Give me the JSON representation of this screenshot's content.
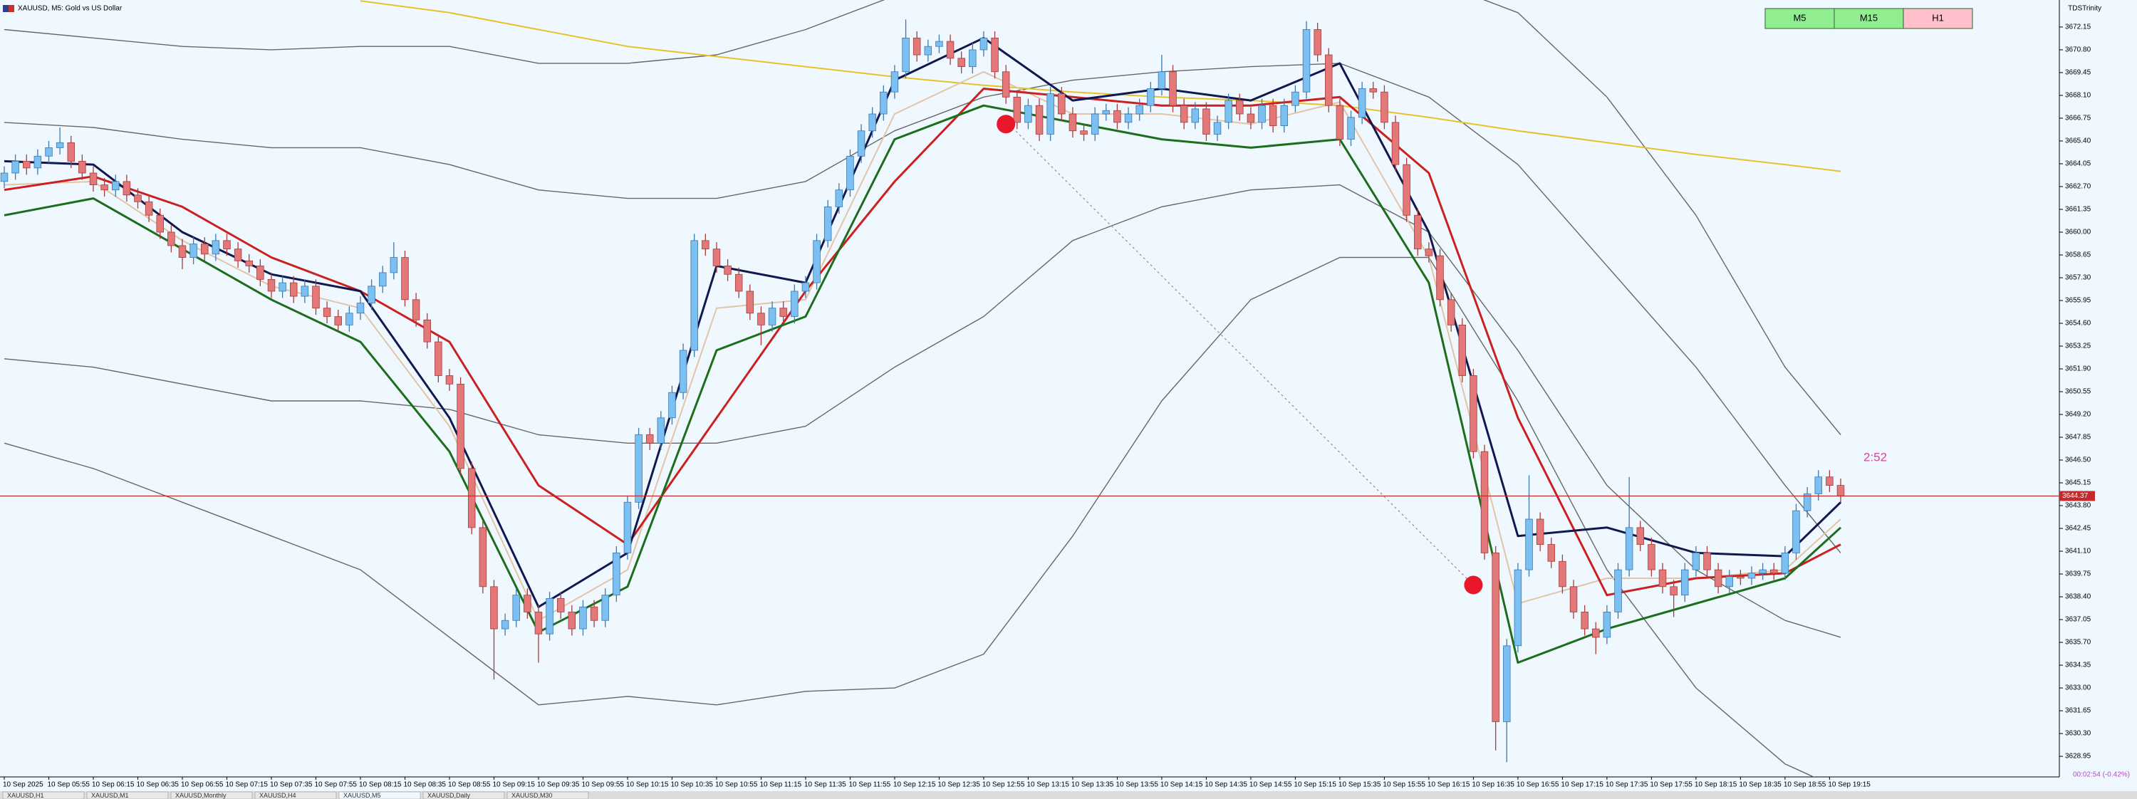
{
  "chart_data": {
    "type": "candlestick",
    "title": "XAUUSD, M5: Gold vs US Dollar",
    "categories": [
      "10 Sep 2025",
      null,
      null,
      null,
      "10 Sep 05:55",
      null,
      null,
      null,
      "10 Sep 06:15",
      null,
      null,
      null,
      "10 Sep 06:35",
      null,
      null,
      null,
      "10 Sep 06:55",
      null,
      null,
      null,
      "10 Sep 07:15",
      null,
      null,
      null,
      "10 Sep 07:35",
      null,
      null,
      null,
      "10 Sep 07:55",
      null,
      null,
      null,
      "10 Sep 08:15",
      null,
      null,
      null,
      "10 Sep 08:35",
      null,
      null,
      null,
      "10 Sep 08:55",
      null,
      null,
      null,
      "10 Sep 09:15",
      null,
      null,
      null,
      "10 Sep 09:35",
      null,
      null,
      null,
      "10 Sep 09:55",
      null,
      null,
      null,
      "10 Sep 10:15",
      null,
      null,
      null,
      "10 Sep 10:35",
      null,
      null,
      null,
      "10 Sep 10:55",
      null,
      null,
      null,
      "10 Sep 11:15",
      null,
      null,
      null,
      "10 Sep 11:35",
      null,
      null,
      null,
      "10 Sep 11:55",
      null,
      null,
      null,
      "10 Sep 12:15",
      null,
      null,
      null,
      "10 Sep 12:35",
      null,
      null,
      null,
      "10 Sep 12:55",
      null,
      null,
      null,
      "10 Sep 13:15",
      null,
      null,
      null,
      "10 Sep 13:35",
      null,
      null,
      null,
      "10 Sep 13:55",
      null,
      null,
      null,
      "10 Sep 14:15",
      null,
      null,
      null,
      "10 Sep 14:35",
      null,
      null,
      null,
      "10 Sep 14:55",
      null,
      null,
      null,
      "10 Sep 15:15",
      null,
      null,
      null,
      "10 Sep 15:35",
      null,
      null,
      null,
      "10 Sep 15:55",
      null,
      null,
      null,
      "10 Sep 16:15",
      null,
      null,
      null,
      "10 Sep 16:35",
      null,
      null,
      null,
      "10 Sep 16:55",
      null,
      null,
      null,
      "10 Sep 17:15",
      null,
      null,
      null,
      "10 Sep 17:35",
      null,
      null,
      null,
      "10 Sep 17:55",
      null,
      null,
      null,
      "10 Sep 18:15",
      null,
      null,
      null,
      "10 Sep 18:35",
      null,
      null,
      null,
      "10 Sep 18:55",
      null,
      null,
      null,
      "10 Sep 19:15",
      null
    ],
    "open": [
      3663.0,
      3663.5,
      3664.2,
      3663.8,
      3664.5,
      3665.0,
      3665.3,
      3664.2,
      3663.5,
      3662.8,
      3662.5,
      3663.0,
      3662.2,
      3661.8,
      3661.0,
      3660.0,
      3659.2,
      3658.5,
      3659.3,
      3658.7,
      3659.5,
      3659.0,
      3658.3,
      3658.0,
      3657.2,
      3656.5,
      3657.0,
      3656.2,
      3656.8,
      3655.5,
      3655.0,
      3654.5,
      3655.2,
      3655.8,
      3656.8,
      3657.6,
      3658.5,
      3656.0,
      3654.8,
      3653.5,
      3651.5,
      3651.0,
      3646.0,
      3642.5,
      3639.0,
      3636.5,
      3637.0,
      3638.5,
      3637.5,
      3636.2,
      3638.3,
      3637.5,
      3636.5,
      3637.8,
      3637.0,
      3638.5,
      3641.0,
      3644.0,
      3648.0,
      3647.5,
      3649.0,
      3650.5,
      3653.0,
      3659.5,
      3659.0,
      3658.0,
      3657.5,
      3656.5,
      3655.2,
      3654.5,
      3655.5,
      3655.0,
      3656.5,
      3657.0,
      3659.5,
      3661.5,
      3662.5,
      3664.5,
      3666.0,
      3667.0,
      3668.3,
      3669.5,
      3671.5,
      3670.5,
      3671.0,
      3671.3,
      3670.3,
      3669.8,
      3670.8,
      3671.5,
      3669.5,
      3668.0,
      3666.5,
      3667.5,
      3665.8,
      3668.2,
      3667.0,
      3666.0,
      3665.8,
      3667.0,
      3667.2,
      3666.5,
      3667.0,
      3667.5,
      3668.5,
      3669.5,
      3667.5,
      3666.5,
      3667.3,
      3665.8,
      3666.5,
      3667.8,
      3667.0,
      3666.5,
      3667.5,
      3666.3,
      3667.5,
      3668.3,
      3672.0,
      3670.5,
      3667.5,
      3665.5,
      3666.8,
      3668.5,
      3668.3,
      3666.5,
      3664.0,
      3661.0,
      3659.0,
      3658.6,
      3656.0,
      3654.5,
      3651.5,
      3647.0,
      3641.0,
      3631.0,
      3635.5,
      3640.0,
      3643.0,
      3641.5,
      3640.5,
      3639.0,
      3637.5,
      3636.5,
      3636.0,
      3637.5,
      3640.0,
      3642.5,
      3641.5,
      3640.0,
      3639.0,
      3638.5,
      3640.0,
      3641.0,
      3640.0,
      3639.0,
      3639.6,
      3639.5,
      3639.8,
      3640.0,
      3639.8,
      3641.0,
      3643.5,
      3644.5,
      3645.5,
      3645.0
    ],
    "high": [
      3663.9,
      3664.6,
      3664.6,
      3664.9,
      3665.4,
      3666.2,
      3665.7,
      3664.6,
      3663.9,
      3663.2,
      3663.4,
      3663.4,
      3662.6,
      3662.2,
      3661.4,
      3660.4,
      3659.6,
      3659.7,
      3659.7,
      3659.9,
      3659.9,
      3659.4,
      3658.7,
      3658.4,
      3657.6,
      3657.4,
      3657.4,
      3657.2,
      3657.2,
      3655.9,
      3655.4,
      3655.6,
      3656.2,
      3657.2,
      3658.0,
      3659.4,
      3658.9,
      3656.4,
      3655.2,
      3653.9,
      3651.9,
      3651.4,
      3646.4,
      3642.9,
      3639.4,
      3637.4,
      3638.9,
      3638.9,
      3637.9,
      3638.7,
      3638.7,
      3637.9,
      3638.2,
      3638.2,
      3638.9,
      3641.4,
      3644.4,
      3648.4,
      3648.4,
      3649.4,
      3650.9,
      3653.4,
      3659.9,
      3659.9,
      3659.4,
      3658.4,
      3657.9,
      3656.9,
      3655.6,
      3655.9,
      3655.9,
      3656.9,
      3657.4,
      3659.9,
      3661.9,
      3662.9,
      3664.9,
      3666.4,
      3667.4,
      3668.7,
      3669.9,
      3672.6,
      3671.9,
      3671.4,
      3671.7,
      3671.7,
      3670.7,
      3671.2,
      3671.9,
      3671.9,
      3669.9,
      3668.4,
      3667.9,
      3667.9,
      3668.6,
      3668.6,
      3667.4,
      3666.4,
      3667.4,
      3667.6,
      3667.6,
      3667.4,
      3667.9,
      3668.9,
      3670.5,
      3669.9,
      3667.9,
      3667.7,
      3667.7,
      3666.9,
      3668.2,
      3668.2,
      3667.4,
      3667.9,
      3667.9,
      3667.9,
      3668.7,
      3672.5,
      3672.4,
      3670.9,
      3667.9,
      3667.2,
      3668.9,
      3668.9,
      3668.7,
      3666.9,
      3664.4,
      3661.4,
      3659.4,
      3659.0,
      3656.4,
      3654.9,
      3651.9,
      3647.4,
      3641.4,
      3635.9,
      3640.4,
      3645.6,
      3643.4,
      3641.9,
      3640.9,
      3639.4,
      3637.9,
      3636.9,
      3637.9,
      3640.4,
      3645.5,
      3642.9,
      3641.9,
      3640.4,
      3639.4,
      3640.4,
      3641.4,
      3641.4,
      3640.4,
      3640.0,
      3640.0,
      3640.2,
      3640.4,
      3640.4,
      3641.4,
      3643.9,
      3644.9,
      3645.9,
      3645.9,
      3645.4
    ],
    "low": [
      3662.6,
      3663.1,
      3663.4,
      3663.4,
      3664.1,
      3664.6,
      3663.8,
      3663.1,
      3662.4,
      3662.1,
      3662.1,
      3661.8,
      3661.4,
      3660.6,
      3659.6,
      3658.8,
      3657.8,
      3658.1,
      3658.3,
      3658.3,
      3658.6,
      3657.9,
      3657.6,
      3656.8,
      3656.1,
      3656.1,
      3655.8,
      3655.8,
      3655.1,
      3654.6,
      3654.1,
      3654.1,
      3654.8,
      3655.4,
      3656.4,
      3657.2,
      3655.6,
      3654.4,
      3653.1,
      3651.1,
      3650.6,
      3645.6,
      3642.1,
      3638.6,
      3633.5,
      3636.1,
      3636.6,
      3637.1,
      3634.5,
      3635.8,
      3637.1,
      3636.1,
      3636.1,
      3636.6,
      3636.6,
      3638.1,
      3640.6,
      3643.6,
      3647.1,
      3647.1,
      3648.6,
      3650.1,
      3652.6,
      3658.6,
      3657.6,
      3657.1,
      3656.1,
      3654.8,
      3653.3,
      3654.1,
      3654.6,
      3654.6,
      3656.1,
      3656.6,
      3659.1,
      3661.1,
      3662.1,
      3664.1,
      3665.6,
      3666.6,
      3667.9,
      3669.1,
      3670.1,
      3670.1,
      3670.6,
      3669.9,
      3669.4,
      3669.4,
      3670.4,
      3669.1,
      3667.6,
      3666.1,
      3666.1,
      3665.4,
      3665.4,
      3666.6,
      3665.6,
      3665.4,
      3665.4,
      3666.6,
      3666.1,
      3666.1,
      3666.6,
      3667.1,
      3668.1,
      3667.1,
      3666.1,
      3666.1,
      3665.4,
      3665.4,
      3666.1,
      3666.6,
      3666.1,
      3666.1,
      3665.9,
      3665.9,
      3667.1,
      3667.9,
      3670.1,
      3667.1,
      3665.1,
      3665.1,
      3666.4,
      3667.9,
      3666.1,
      3663.6,
      3660.6,
      3658.6,
      3658.2,
      3655.6,
      3654.1,
      3651.1,
      3646.6,
      3640.6,
      3629.3,
      3628.6,
      3635.1,
      3639.6,
      3641.1,
      3640.1,
      3638.6,
      3637.1,
      3636.1,
      3635.0,
      3635.6,
      3637.1,
      3639.6,
      3641.1,
      3639.6,
      3638.6,
      3637.2,
      3638.1,
      3639.6,
      3639.6,
      3638.6,
      3638.6,
      3639.1,
      3639.1,
      3639.4,
      3639.4,
      3639.4,
      3640.6,
      3643.1,
      3644.1,
      3644.6,
      3643.97
    ],
    "close": [
      3663.5,
      3664.2,
      3663.8,
      3664.5,
      3665.0,
      3665.3,
      3664.2,
      3663.5,
      3662.8,
      3662.5,
      3663.0,
      3662.2,
      3661.8,
      3661.0,
      3660.0,
      3659.2,
      3658.5,
      3659.3,
      3658.7,
      3659.5,
      3659.0,
      3658.3,
      3658.0,
      3657.2,
      3656.5,
      3657.0,
      3656.2,
      3656.8,
      3655.5,
      3655.0,
      3654.5,
      3655.2,
      3655.8,
      3656.8,
      3657.6,
      3658.5,
      3656.0,
      3654.8,
      3653.5,
      3651.5,
      3651.0,
      3646.0,
      3642.5,
      3639.0,
      3636.5,
      3637.0,
      3638.5,
      3637.5,
      3636.2,
      3638.3,
      3637.5,
      3636.5,
      3637.8,
      3637.0,
      3638.5,
      3641.0,
      3644.0,
      3648.0,
      3647.5,
      3649.0,
      3650.5,
      3653.0,
      3659.5,
      3659.0,
      3658.0,
      3657.5,
      3656.5,
      3655.2,
      3654.5,
      3655.5,
      3655.0,
      3656.5,
      3657.0,
      3659.5,
      3661.5,
      3662.5,
      3664.5,
      3666.0,
      3667.0,
      3668.3,
      3669.5,
      3671.5,
      3670.5,
      3671.0,
      3671.3,
      3670.3,
      3669.8,
      3670.8,
      3671.5,
      3669.5,
      3668.0,
      3666.5,
      3667.5,
      3665.8,
      3668.2,
      3667.0,
      3666.0,
      3665.8,
      3667.0,
      3667.2,
      3666.5,
      3667.0,
      3667.5,
      3668.5,
      3669.5,
      3667.5,
      3666.5,
      3667.3,
      3665.8,
      3666.5,
      3667.8,
      3667.0,
      3666.5,
      3667.5,
      3666.3,
      3667.5,
      3668.3,
      3672.0,
      3670.5,
      3667.5,
      3665.5,
      3666.8,
      3668.5,
      3668.3,
      3666.5,
      3664.0,
      3661.0,
      3659.0,
      3658.6,
      3656.0,
      3654.5,
      3651.5,
      3647.0,
      3641.0,
      3631.0,
      3635.5,
      3640.0,
      3643.0,
      3641.5,
      3640.5,
      3639.0,
      3637.5,
      3636.5,
      3636.0,
      3637.5,
      3640.0,
      3642.5,
      3641.5,
      3640.0,
      3639.0,
      3638.5,
      3640.0,
      3641.0,
      3640.0,
      3639.0,
      3639.6,
      3639.5,
      3639.8,
      3640.0,
      3639.8,
      3641.0,
      3643.5,
      3644.5,
      3645.5,
      3645.0,
      3644.37
    ],
    "up_color": "#7cc0f2",
    "down_color": "#e27878",
    "price_line_color": "#c42a2a",
    "ylim": [
      3627.73,
      3673.75
    ],
    "yticks": [
      3628.95,
      {
        "value": 3630.3,
        "label": "3630.30"
      },
      3631.65,
      {
        "value": 3633,
        "label": "3633.00"
      },
      3634.35,
      {
        "value": 3635.7,
        "label": "3635.70"
      },
      3637.05,
      {
        "value": 3638.4,
        "label": "3638.40"
      },
      3639.75,
      {
        "value": 3641.1,
        "label": "3641.10"
      },
      3642.45,
      {
        "value": 3643.8,
        "label": "3643.80"
      },
      3645.15,
      {
        "value": 3646.5,
        "label": "3646.50"
      },
      3647.85,
      {
        "value": 3649.2,
        "label": "3649.20"
      },
      3650.55,
      {
        "value": 3651.9,
        "label": "3651.90"
      },
      3653.25,
      {
        "value": 3654.6,
        "label": "3654.60"
      },
      3655.95,
      {
        "value": 3657.3,
        "label": "3657.30"
      },
      3658.65,
      {
        "value": 3660,
        "label": "3660.00"
      },
      3661.35,
      {
        "value": 3662.7,
        "label": "3662.70"
      },
      3664.05,
      {
        "value": 3665.4,
        "label": "3665.40"
      },
      3666.75,
      {
        "value": 3668.1,
        "label": "3668.10"
      },
      3669.45,
      {
        "value": 3670.8,
        "label": "3670.80"
      },
      3672.15
    ],
    "grid": false,
    "indicator_x": [
      0,
      8,
      16,
      24,
      32,
      40,
      48,
      56,
      64,
      72,
      80,
      88,
      96,
      104,
      112,
      120,
      128,
      136,
      144,
      152,
      160,
      165
    ],
    "lines": [
      {
        "color": "#666666",
        "values": [
          3672,
          3671.5,
          3671,
          3670.8,
          3671,
          3671,
          3670,
          3670,
          3670.5,
          3672,
          3674,
          3675,
          3675,
          3675,
          3675,
          3675,
          3675,
          3673,
          3668,
          3661,
          3652,
          3648
        ]
      },
      {
        "color": "#666666",
        "values": [
          3666.5,
          3666.2,
          3665.5,
          3665,
          3665,
          3664,
          3662.5,
          3662,
          3662,
          3663,
          3666,
          3668,
          3669,
          3669.5,
          3669.8,
          3670,
          3668,
          3664,
          3658,
          3652,
          3645,
          3641
        ]
      },
      {
        "color": "#666666",
        "values": [
          3652.5,
          3652,
          3651,
          3650,
          3650,
          3649.5,
          3648,
          3647.5,
          3647.5,
          3648.5,
          3652,
          3655,
          3659.5,
          3661.5,
          3662.5,
          3662.8,
          3660,
          3653,
          3645,
          3640,
          3637,
          3636
        ]
      },
      {
        "color": "#666666",
        "values": [
          3647.5,
          3646,
          3644,
          3642,
          3640,
          3636,
          3632,
          3632.5,
          3632,
          3632.8,
          3633,
          3635,
          3642,
          3650,
          3656,
          3658.5,
          3658.5,
          3650,
          3640,
          3633,
          3628.5,
          3627
        ]
      },
      {
        "color": "#e6c229",
        "values": [
          null,
          null,
          null,
          null,
          3673.7,
          3673,
          3672,
          3671,
          3670.4,
          3669.8,
          3669.2,
          3668.7,
          3668.3,
          3668,
          3667.8,
          3667.5,
          3666.8,
          3666,
          3665.3,
          3664.6,
          3664,
          3663.6
        ]
      },
      {
        "color": "#e3c4a4",
        "values": [
          3662.8,
          3663,
          3659.5,
          3656.8,
          3655.5,
          3648.5,
          3637,
          3640,
          3655.5,
          3656,
          3667,
          3669.5,
          3667,
          3667,
          3666.4,
          3667.7,
          3658.5,
          3638,
          3639.5,
          3639.5,
          3640,
          3643
        ]
      },
      {
        "color": "#cc2020",
        "values": [
          3662.5,
          3663.3,
          3661.5,
          3658.5,
          3656.5,
          3653.5,
          3645,
          3641.5,
          3649,
          3656.5,
          3663,
          3668.5,
          3668,
          3667.5,
          3667.5,
          3668,
          3663.5,
          3649,
          3638.5,
          3639.5,
          3639.8,
          3641.5
        ]
      },
      {
        "color": "#1c6e1c",
        "values": [
          3661,
          3662,
          3659,
          3656,
          3653.5,
          3647,
          3636.3,
          3639,
          3653,
          3655,
          3665.5,
          3667.5,
          3666.5,
          3665.5,
          3665,
          3665.5,
          3657,
          3634.5,
          3636.5,
          3638,
          3639.5,
          3642.5
        ]
      },
      {
        "color": "#101850",
        "values": [
          3664.2,
          3664,
          3660,
          3657.5,
          3656.5,
          3649,
          3637.8,
          3641,
          3658,
          3657,
          3669,
          3671.5,
          3667.8,
          3668.5,
          3667.8,
          3670,
          3660,
          3642,
          3642.5,
          3641,
          3640.8,
          3644
        ]
      }
    ],
    "signals": {
      "color": "#e8182a",
      "x": [
        90,
        132
      ],
      "values": [
        3666.4,
        3639.1
      ]
    }
  },
  "indicator_label": "TDSTrinity",
  "timeframe_buttons": [
    {
      "label": "M5",
      "color": "#90ee90"
    },
    {
      "label": "M15",
      "color": "#90ee90"
    },
    {
      "label": "H1",
      "color": "#ffc0cb"
    }
  ],
  "countdown": "2:52",
  "status": "00:02:54 (-0.42%)",
  "tabs": [
    "XAUUSD,H1",
    "XAUUSD,M1",
    "XAUUSD,Monthly",
    "XAUUSD,H4",
    "XAUUSD,M5",
    "XAUUSD,Daily",
    "XAUUSD,M30"
  ]
}
